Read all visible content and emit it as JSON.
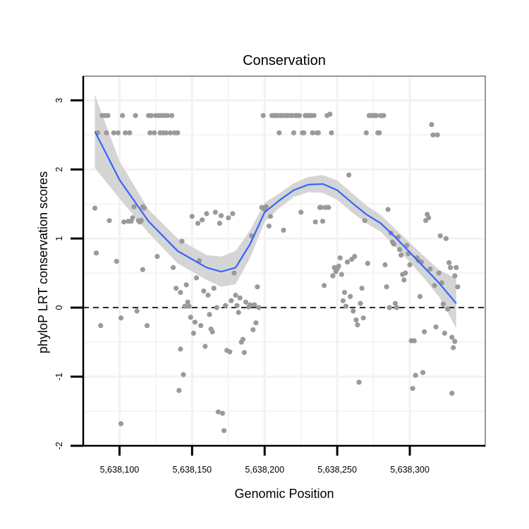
{
  "chart_data": {
    "type": "scatter",
    "title": "Conservation",
    "xlabel": "Genomic Position",
    "ylabel": "phyloP LRT conservation scores",
    "xlim": [
      5638075,
      5638352
    ],
    "ylim": [
      -2,
      3.35
    ],
    "x_ticks": [
      5638100,
      5638150,
      5638200,
      5638250,
      5638300
    ],
    "x_tick_labels": [
      "5,638,100",
      "5,638,150",
      "5,638,200",
      "5,638,250",
      "5,638,300"
    ],
    "y_ticks": [
      -2,
      -1,
      0,
      1,
      2,
      3
    ],
    "y_tick_labels": [
      "-2",
      "-1",
      "0",
      "1",
      "2",
      "3"
    ],
    "grid": true,
    "reference_line": {
      "y": 0,
      "style": "dashed"
    },
    "colors": {
      "points": "#9a9a9a",
      "smooth_line": "#3366ff",
      "confidence_band": "#d5d5d5",
      "grid": "#f2f2f2",
      "panel_border": "#808080",
      "reference_line": "#000000"
    },
    "smooth": {
      "x": [
        5638083,
        5638100,
        5638120,
        5638140,
        5638160,
        5638170,
        5638180,
        5638190,
        5638200,
        5638210,
        5638220,
        5638230,
        5638240,
        5638250,
        5638260,
        5638270,
        5638280,
        5638290,
        5638300,
        5638310,
        5638320,
        5638332
      ],
      "y": [
        2.55,
        1.85,
        1.25,
        0.82,
        0.58,
        0.52,
        0.58,
        0.92,
        1.38,
        1.55,
        1.7,
        1.78,
        1.79,
        1.7,
        1.52,
        1.35,
        1.22,
        1.02,
        0.8,
        0.58,
        0.36,
        0.06
      ],
      "upper": [
        3.08,
        2.12,
        1.42,
        1.0,
        0.76,
        0.74,
        0.82,
        1.12,
        1.52,
        1.65,
        1.8,
        1.89,
        1.92,
        1.84,
        1.66,
        1.48,
        1.34,
        1.14,
        0.94,
        0.74,
        0.55,
        0.42
      ],
      "lower": [
        2.02,
        1.58,
        1.08,
        0.64,
        0.4,
        0.3,
        0.34,
        0.72,
        1.24,
        1.44,
        1.6,
        1.67,
        1.66,
        1.56,
        1.38,
        1.22,
        1.1,
        0.88,
        0.66,
        0.42,
        0.16,
        -0.3
      ]
    },
    "points": [
      [
        5638083,
        1.44
      ],
      [
        5638084,
        0.79
      ],
      [
        5638085,
        2.53
      ],
      [
        5638087,
        -0.26
      ],
      [
        5638088,
        2.78
      ],
      [
        5638090,
        2.78
      ],
      [
        5638091,
        2.53
      ],
      [
        5638092,
        2.78
      ],
      [
        5638093,
        1.26
      ],
      [
        5638096,
        2.53
      ],
      [
        5638098,
        0.67
      ],
      [
        5638099,
        2.53
      ],
      [
        5638101,
        -0.15
      ],
      [
        5638101,
        -1.68
      ],
      [
        5638102,
        2.78
      ],
      [
        5638103,
        1.24
      ],
      [
        5638104,
        2.53
      ],
      [
        5638106,
        1.25
      ],
      [
        5638107,
        2.53
      ],
      [
        5638108,
        1.25
      ],
      [
        5638109,
        1.3
      ],
      [
        5638110,
        1.46
      ],
      [
        5638111,
        2.78
      ],
      [
        5638112,
        -0.05
      ],
      [
        5638113,
        1.26
      ],
      [
        5638114,
        1.24
      ],
      [
        5638115,
        1.26
      ],
      [
        5638116,
        1.46
      ],
      [
        5638116,
        0.55
      ],
      [
        5638117,
        1.44
      ],
      [
        5638119,
        -0.26
      ],
      [
        5638120,
        2.78
      ],
      [
        5638121,
        2.53
      ],
      [
        5638122,
        2.78
      ],
      [
        5638124,
        2.53
      ],
      [
        5638125,
        2.78
      ],
      [
        5638126,
        0.74
      ],
      [
        5638127,
        2.78
      ],
      [
        5638128,
        2.53
      ],
      [
        5638129,
        2.78
      ],
      [
        5638130,
        2.53
      ],
      [
        5638131,
        2.78
      ],
      [
        5638132,
        2.53
      ],
      [
        5638133,
        2.78
      ],
      [
        5638135,
        2.53
      ],
      [
        5638136,
        2.78
      ],
      [
        5638137,
        0.58
      ],
      [
        5638138,
        2.53
      ],
      [
        5638139,
        0.28
      ],
      [
        5638140,
        2.53
      ],
      [
        5638141,
        -1.2
      ],
      [
        5638142,
        0.22
      ],
      [
        5638142,
        -0.6
      ],
      [
        5638143,
        0.96
      ],
      [
        5638144,
        -0.97
      ],
      [
        5638145,
        0.02
      ],
      [
        5638146,
        0.33
      ],
      [
        5638147,
        0.08
      ],
      [
        5638148,
        0.02
      ],
      [
        5638149,
        -0.14
      ],
      [
        5638150,
        1.32
      ],
      [
        5638151,
        -0.37
      ],
      [
        5638152,
        -0.21
      ],
      [
        5638153,
        0.43
      ],
      [
        5638154,
        1.22
      ],
      [
        5638155,
        0.68
      ],
      [
        5638156,
        -0.26
      ],
      [
        5638157,
        1.27
      ],
      [
        5638158,
        0.24
      ],
      [
        5638159,
        -0.56
      ],
      [
        5638160,
        1.36
      ],
      [
        5638161,
        0.18
      ],
      [
        5638162,
        -0.1
      ],
      [
        5638163,
        -0.31
      ],
      [
        5638164,
        -0.35
      ],
      [
        5638165,
        0.28
      ],
      [
        5638166,
        1.38
      ],
      [
        5638167,
        0.0
      ],
      [
        5638168,
        -1.51
      ],
      [
        5638169,
        1.22
      ],
      [
        5638170,
        1.33
      ],
      [
        5638171,
        -1.53
      ],
      [
        5638172,
        -1.78
      ],
      [
        5638173,
        0.03
      ],
      [
        5638174,
        -0.62
      ],
      [
        5638175,
        1.3
      ],
      [
        5638176,
        -0.64
      ],
      [
        5638177,
        0.1
      ],
      [
        5638178,
        1.36
      ],
      [
        5638179,
        0.5
      ],
      [
        5638180,
        0.18
      ],
      [
        5638181,
        0.03
      ],
      [
        5638182,
        -0.07
      ],
      [
        5638183,
        0.14
      ],
      [
        5638184,
        -0.5
      ],
      [
        5638185,
        -0.46
      ],
      [
        5638186,
        -0.65
      ],
      [
        5638187,
        0.08
      ],
      [
        5638189,
        0.01
      ],
      [
        5638190,
        0.04
      ],
      [
        5638191,
        1.04
      ],
      [
        5638192,
        -0.32
      ],
      [
        5638193,
        0.04
      ],
      [
        5638194,
        -0.22
      ],
      [
        5638195,
        0.3
      ],
      [
        5638196,
        0.0
      ],
      [
        5638198,
        1.45
      ],
      [
        5638199,
        2.78
      ],
      [
        5638200,
        1.42
      ],
      [
        5638201,
        1.46
      ],
      [
        5638203,
        1.18
      ],
      [
        5638204,
        1.32
      ],
      [
        5638205,
        2.78
      ],
      [
        5638206,
        2.78
      ],
      [
        5638207,
        2.78
      ],
      [
        5638208,
        2.78
      ],
      [
        5638209,
        2.78
      ],
      [
        5638210,
        2.53
      ],
      [
        5638211,
        2.78
      ],
      [
        5638212,
        2.78
      ],
      [
        5638213,
        1.12
      ],
      [
        5638214,
        2.78
      ],
      [
        5638215,
        2.78
      ],
      [
        5638216,
        2.78
      ],
      [
        5638218,
        2.78
      ],
      [
        5638219,
        2.78
      ],
      [
        5638220,
        2.53
      ],
      [
        5638221,
        2.78
      ],
      [
        5638222,
        2.78
      ],
      [
        5638223,
        2.78
      ],
      [
        5638224,
        2.78
      ],
      [
        5638225,
        1.38
      ],
      [
        5638226,
        2.53
      ],
      [
        5638227,
        2.53
      ],
      [
        5638228,
        2.78
      ],
      [
        5638229,
        2.78
      ],
      [
        5638230,
        2.78
      ],
      [
        5638231,
        2.78
      ],
      [
        5638232,
        2.78
      ],
      [
        5638233,
        2.53
      ],
      [
        5638234,
        2.78
      ],
      [
        5638235,
        1.24
      ],
      [
        5638236,
        2.53
      ],
      [
        5638237,
        2.53
      ],
      [
        5638238,
        1.45
      ],
      [
        5638239,
        1.45
      ],
      [
        5638240,
        1.25
      ],
      [
        5638241,
        0.32
      ],
      [
        5638242,
        1.45
      ],
      [
        5638243,
        2.78
      ],
      [
        5638244,
        1.45
      ],
      [
        5638245,
        2.8
      ],
      [
        5638246,
        2.53
      ],
      [
        5638247,
        0.46
      ],
      [
        5638248,
        0.58
      ],
      [
        5638249,
        0.52
      ],
      [
        5638250,
        0.56
      ],
      [
        5638251,
        0.6
      ],
      [
        5638252,
        0.72
      ],
      [
        5638253,
        0.48
      ],
      [
        5638254,
        0.1
      ],
      [
        5638255,
        0.22
      ],
      [
        5638256,
        0.02
      ],
      [
        5638257,
        0.66
      ],
      [
        5638258,
        1.92
      ],
      [
        5638259,
        0.16
      ],
      [
        5638260,
        0.7
      ],
      [
        5638261,
        -0.05
      ],
      [
        5638262,
        0.74
      ],
      [
        5638263,
        -0.18
      ],
      [
        5638264,
        -0.25
      ],
      [
        5638265,
        -1.08
      ],
      [
        5638266,
        0.06
      ],
      [
        5638267,
        0.28
      ],
      [
        5638268,
        -0.15
      ],
      [
        5638269,
        1.26
      ],
      [
        5638270,
        2.53
      ],
      [
        5638271,
        0.64
      ],
      [
        5638272,
        2.78
      ],
      [
        5638273,
        2.78
      ],
      [
        5638274,
        2.78
      ],
      [
        5638275,
        2.78
      ],
      [
        5638276,
        2.78
      ],
      [
        5638277,
        2.78
      ],
      [
        5638278,
        2.53
      ],
      [
        5638279,
        2.53
      ],
      [
        5638280,
        2.78
      ],
      [
        5638281,
        2.78
      ],
      [
        5638282,
        2.78
      ],
      [
        5638283,
        0.62
      ],
      [
        5638284,
        0.3
      ],
      [
        5638285,
        1.42
      ],
      [
        5638286,
        0.0
      ],
      [
        5638287,
        1.08
      ],
      [
        5638288,
        0.95
      ],
      [
        5638289,
        0.92
      ],
      [
        5638290,
        0.06
      ],
      [
        5638291,
        0.0
      ],
      [
        5638292,
        1.02
      ],
      [
        5638293,
        0.84
      ],
      [
        5638294,
        0.76
      ],
      [
        5638295,
        0.48
      ],
      [
        5638296,
        0.4
      ],
      [
        5638297,
        0.5
      ],
      [
        5638298,
        0.9
      ],
      [
        5638299,
        0.78
      ],
      [
        5638300,
        0.62
      ],
      [
        5638301,
        -0.48
      ],
      [
        5638302,
        -1.17
      ],
      [
        5638303,
        -0.48
      ],
      [
        5638304,
        -0.98
      ],
      [
        5638305,
        0.72
      ],
      [
        5638306,
        0.68
      ],
      [
        5638307,
        0.16
      ],
      [
        5638308,
        0.66
      ],
      [
        5638309,
        -0.94
      ],
      [
        5638310,
        -0.35
      ],
      [
        5638311,
        1.26
      ],
      [
        5638312,
        1.35
      ],
      [
        5638313,
        1.3
      ],
      [
        5638314,
        0.56
      ],
      [
        5638315,
        2.65
      ],
      [
        5638316,
        2.5
      ],
      [
        5638317,
        0.32
      ],
      [
        5638318,
        -0.28
      ],
      [
        5638319,
        2.5
      ],
      [
        5638320,
        0.5
      ],
      [
        5638321,
        1.04
      ],
      [
        5638322,
        0.36
      ],
      [
        5638323,
        0.05
      ],
      [
        5638324,
        -0.37
      ],
      [
        5638325,
        1.0
      ],
      [
        5638326,
        -0.02
      ],
      [
        5638327,
        0.65
      ],
      [
        5638328,
        0.58
      ],
      [
        5638329,
        -0.43
      ],
      [
        5638329,
        -1.24
      ],
      [
        5638330,
        -0.58
      ],
      [
        5638331,
        0.46
      ],
      [
        5638331,
        -0.49
      ],
      [
        5638332,
        0.58
      ],
      [
        5638333,
        0.3
      ]
    ]
  }
}
